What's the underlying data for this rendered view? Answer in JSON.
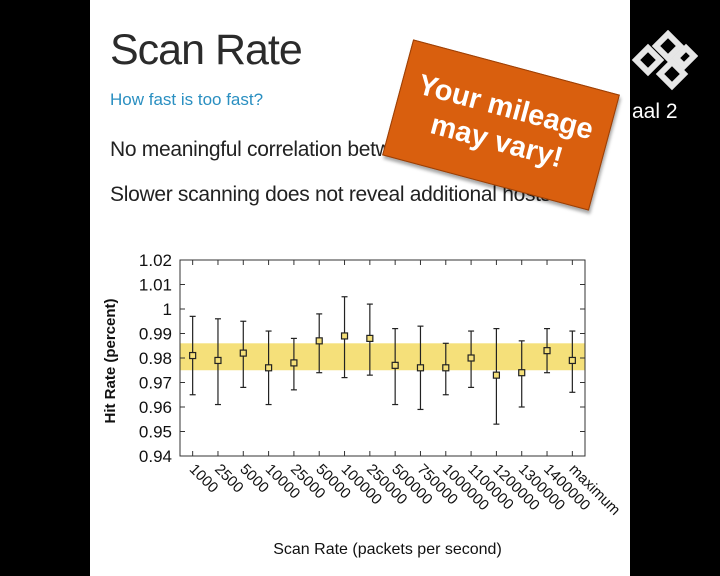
{
  "slide": {
    "title": "Scan Rate",
    "subtitle": "How fast is too fast?",
    "bullets": [
      "No meaningful correlation between sp",
      "Slower scanning does not reveal additional hosts."
    ],
    "sticker": "Your mileage\nmay vary!",
    "sticker_color": "#d95f0e"
  },
  "overlay": {
    "channel_text": "aal 2",
    "logo_icon": "broadcaster-logo-icon"
  },
  "chart_data": {
    "type": "scatter",
    "xlabel": "Scan Rate (packets per second)",
    "ylabel": "Hit Rate (percent)",
    "categories": [
      "1000",
      "2500",
      "5000",
      "10000",
      "25000",
      "50000",
      "100000",
      "250000",
      "500000",
      "750000",
      "1000000",
      "1100000",
      "1200000",
      "1300000",
      "1400000",
      "maximum"
    ],
    "values": [
      0.981,
      0.979,
      0.982,
      0.976,
      0.978,
      0.987,
      0.989,
      0.988,
      0.977,
      0.976,
      0.976,
      0.98,
      0.973,
      0.974,
      0.983,
      0.979
    ],
    "error_low": [
      0.965,
      0.961,
      0.968,
      0.961,
      0.967,
      0.974,
      0.972,
      0.973,
      0.961,
      0.959,
      0.965,
      0.968,
      0.953,
      0.96,
      0.974,
      0.966
    ],
    "error_high": [
      0.997,
      0.996,
      0.995,
      0.991,
      0.988,
      0.998,
      1.005,
      1.002,
      0.992,
      0.993,
      0.986,
      0.991,
      0.992,
      0.987,
      0.992,
      0.991
    ],
    "band": [
      0.975,
      0.986
    ],
    "band_color": "#f5e07a",
    "marker_color": "#d4a020",
    "ylim": [
      0.94,
      1.02
    ],
    "yticks": [
      "0.94",
      "0.95",
      "0.96",
      "0.97",
      "0.98",
      "0.99",
      "1",
      "1.01",
      "1.02"
    ],
    "grid": false,
    "legend": "none"
  }
}
